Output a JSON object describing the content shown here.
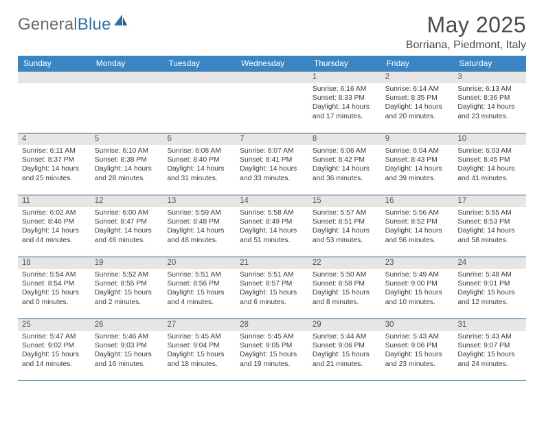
{
  "logo": {
    "general": "General",
    "blue": "Blue"
  },
  "title": "May 2025",
  "location": "Borriana, Piedmont, Italy",
  "colors": {
    "header_bg": "#3a86c5",
    "rule": "#1f5a86",
    "daynum_bg": "#e6e6e6",
    "text": "#3a3a3a"
  },
  "daysOfWeek": [
    "Sunday",
    "Monday",
    "Tuesday",
    "Wednesday",
    "Thursday",
    "Friday",
    "Saturday"
  ],
  "weeks": [
    [
      {
        "n": "",
        "sr": "",
        "ss": "",
        "dl": ""
      },
      {
        "n": "",
        "sr": "",
        "ss": "",
        "dl": ""
      },
      {
        "n": "",
        "sr": "",
        "ss": "",
        "dl": ""
      },
      {
        "n": "",
        "sr": "",
        "ss": "",
        "dl": ""
      },
      {
        "n": "1",
        "sr": "Sunrise: 6:16 AM",
        "ss": "Sunset: 8:33 PM",
        "dl": "Daylight: 14 hours and 17 minutes."
      },
      {
        "n": "2",
        "sr": "Sunrise: 6:14 AM",
        "ss": "Sunset: 8:35 PM",
        "dl": "Daylight: 14 hours and 20 minutes."
      },
      {
        "n": "3",
        "sr": "Sunrise: 6:13 AM",
        "ss": "Sunset: 8:36 PM",
        "dl": "Daylight: 14 hours and 23 minutes."
      }
    ],
    [
      {
        "n": "4",
        "sr": "Sunrise: 6:11 AM",
        "ss": "Sunset: 8:37 PM",
        "dl": "Daylight: 14 hours and 25 minutes."
      },
      {
        "n": "5",
        "sr": "Sunrise: 6:10 AM",
        "ss": "Sunset: 8:38 PM",
        "dl": "Daylight: 14 hours and 28 minutes."
      },
      {
        "n": "6",
        "sr": "Sunrise: 6:08 AM",
        "ss": "Sunset: 8:40 PM",
        "dl": "Daylight: 14 hours and 31 minutes."
      },
      {
        "n": "7",
        "sr": "Sunrise: 6:07 AM",
        "ss": "Sunset: 8:41 PM",
        "dl": "Daylight: 14 hours and 33 minutes."
      },
      {
        "n": "8",
        "sr": "Sunrise: 6:06 AM",
        "ss": "Sunset: 8:42 PM",
        "dl": "Daylight: 14 hours and 36 minutes."
      },
      {
        "n": "9",
        "sr": "Sunrise: 6:04 AM",
        "ss": "Sunset: 8:43 PM",
        "dl": "Daylight: 14 hours and 39 minutes."
      },
      {
        "n": "10",
        "sr": "Sunrise: 6:03 AM",
        "ss": "Sunset: 8:45 PM",
        "dl": "Daylight: 14 hours and 41 minutes."
      }
    ],
    [
      {
        "n": "11",
        "sr": "Sunrise: 6:02 AM",
        "ss": "Sunset: 8:46 PM",
        "dl": "Daylight: 14 hours and 44 minutes."
      },
      {
        "n": "12",
        "sr": "Sunrise: 6:00 AM",
        "ss": "Sunset: 8:47 PM",
        "dl": "Daylight: 14 hours and 46 minutes."
      },
      {
        "n": "13",
        "sr": "Sunrise: 5:59 AM",
        "ss": "Sunset: 8:48 PM",
        "dl": "Daylight: 14 hours and 48 minutes."
      },
      {
        "n": "14",
        "sr": "Sunrise: 5:58 AM",
        "ss": "Sunset: 8:49 PM",
        "dl": "Daylight: 14 hours and 51 minutes."
      },
      {
        "n": "15",
        "sr": "Sunrise: 5:57 AM",
        "ss": "Sunset: 8:51 PM",
        "dl": "Daylight: 14 hours and 53 minutes."
      },
      {
        "n": "16",
        "sr": "Sunrise: 5:56 AM",
        "ss": "Sunset: 8:52 PM",
        "dl": "Daylight: 14 hours and 56 minutes."
      },
      {
        "n": "17",
        "sr": "Sunrise: 5:55 AM",
        "ss": "Sunset: 8:53 PM",
        "dl": "Daylight: 14 hours and 58 minutes."
      }
    ],
    [
      {
        "n": "18",
        "sr": "Sunrise: 5:54 AM",
        "ss": "Sunset: 8:54 PM",
        "dl": "Daylight: 15 hours and 0 minutes."
      },
      {
        "n": "19",
        "sr": "Sunrise: 5:52 AM",
        "ss": "Sunset: 8:55 PM",
        "dl": "Daylight: 15 hours and 2 minutes."
      },
      {
        "n": "20",
        "sr": "Sunrise: 5:51 AM",
        "ss": "Sunset: 8:56 PM",
        "dl": "Daylight: 15 hours and 4 minutes."
      },
      {
        "n": "21",
        "sr": "Sunrise: 5:51 AM",
        "ss": "Sunset: 8:57 PM",
        "dl": "Daylight: 15 hours and 6 minutes."
      },
      {
        "n": "22",
        "sr": "Sunrise: 5:50 AM",
        "ss": "Sunset: 8:58 PM",
        "dl": "Daylight: 15 hours and 8 minutes."
      },
      {
        "n": "23",
        "sr": "Sunrise: 5:49 AM",
        "ss": "Sunset: 9:00 PM",
        "dl": "Daylight: 15 hours and 10 minutes."
      },
      {
        "n": "24",
        "sr": "Sunrise: 5:48 AM",
        "ss": "Sunset: 9:01 PM",
        "dl": "Daylight: 15 hours and 12 minutes."
      }
    ],
    [
      {
        "n": "25",
        "sr": "Sunrise: 5:47 AM",
        "ss": "Sunset: 9:02 PM",
        "dl": "Daylight: 15 hours and 14 minutes."
      },
      {
        "n": "26",
        "sr": "Sunrise: 5:46 AM",
        "ss": "Sunset: 9:03 PM",
        "dl": "Daylight: 15 hours and 16 minutes."
      },
      {
        "n": "27",
        "sr": "Sunrise: 5:45 AM",
        "ss": "Sunset: 9:04 PM",
        "dl": "Daylight: 15 hours and 18 minutes."
      },
      {
        "n": "28",
        "sr": "Sunrise: 5:45 AM",
        "ss": "Sunset: 9:05 PM",
        "dl": "Daylight: 15 hours and 19 minutes."
      },
      {
        "n": "29",
        "sr": "Sunrise: 5:44 AM",
        "ss": "Sunset: 9:06 PM",
        "dl": "Daylight: 15 hours and 21 minutes."
      },
      {
        "n": "30",
        "sr": "Sunrise: 5:43 AM",
        "ss": "Sunset: 9:06 PM",
        "dl": "Daylight: 15 hours and 23 minutes."
      },
      {
        "n": "31",
        "sr": "Sunrise: 5:43 AM",
        "ss": "Sunset: 9:07 PM",
        "dl": "Daylight: 15 hours and 24 minutes."
      }
    ]
  ]
}
